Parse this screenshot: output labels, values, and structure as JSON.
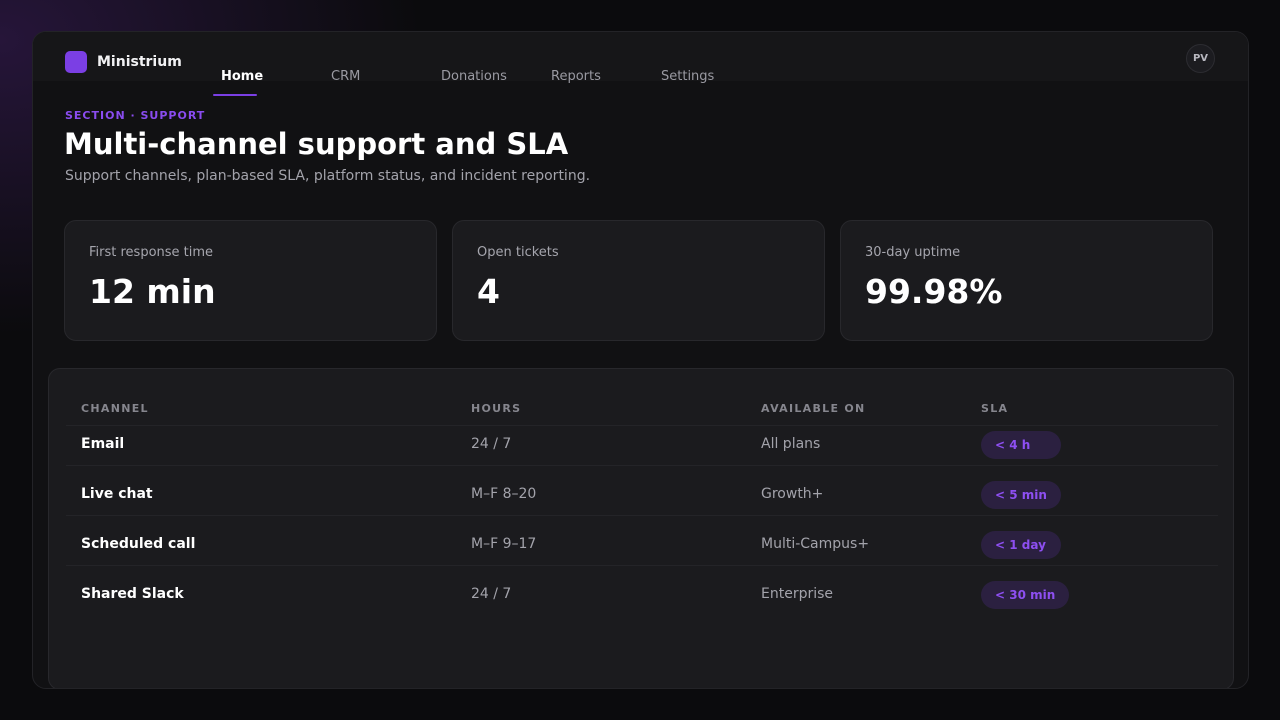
{
  "app": {
    "brand": "Ministrium",
    "avatar_initials": "PV",
    "accent": "#7b3fe4"
  },
  "nav": {
    "tabs": [
      {
        "label": "Home",
        "active": true
      },
      {
        "label": "CRM",
        "active": false
      },
      {
        "label": "Donations",
        "active": false
      },
      {
        "label": "Reports",
        "active": false
      },
      {
        "label": "Settings",
        "active": false
      }
    ]
  },
  "header": {
    "eyebrow": "SECTION · SUPPORT",
    "title": "Multi-channel support and SLA",
    "subtitle": "Support channels, plan-based SLA, platform status, and incident reporting."
  },
  "stats": [
    {
      "label": "First response time",
      "value": "12 min"
    },
    {
      "label": "Open tickets",
      "value": "4"
    },
    {
      "label": "30-day uptime",
      "value": "99.98%"
    }
  ],
  "table": {
    "columns": [
      "CHANNEL",
      "HOURS",
      "AVAILABLE ON",
      "SLA"
    ],
    "rows": [
      {
        "channel": "Email",
        "hours": "24 / 7",
        "available_on": "All plans",
        "sla": "< 4 h"
      },
      {
        "channel": "Live chat",
        "hours": "M–F 8–20",
        "available_on": "Growth+",
        "sla": "< 5 min"
      },
      {
        "channel": "Scheduled call",
        "hours": "M–F 9–17",
        "available_on": "Multi-Campus+",
        "sla": "< 1 day"
      },
      {
        "channel": "Shared Slack",
        "hours": "24 / 7",
        "available_on": "Enterprise",
        "sla": "< 30 min"
      }
    ]
  }
}
